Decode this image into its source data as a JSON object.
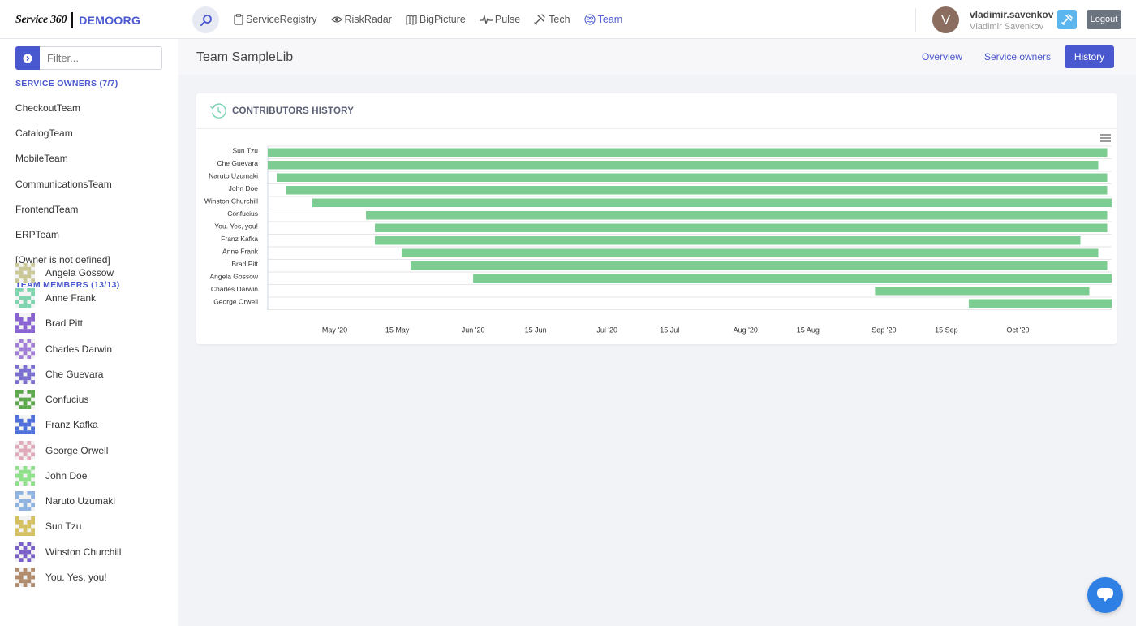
{
  "header": {
    "brand_logo": "Service 360",
    "org": "DEMOORG",
    "nav": [
      {
        "label": "ServiceRegistry",
        "icon": "clipboard-icon"
      },
      {
        "label": "RiskRadar",
        "icon": "eye-icon"
      },
      {
        "label": "BigPicture",
        "icon": "map-icon"
      },
      {
        "label": "Pulse",
        "icon": "pulse-icon"
      },
      {
        "label": "Tech",
        "icon": "tools-icon"
      },
      {
        "label": "Team",
        "icon": "team-icon",
        "active": true
      }
    ],
    "avatar_initial": "V",
    "user_login": "vladimir.savenkov",
    "user_name": "Vladimir Savenkov",
    "logout_label": "Logout"
  },
  "sidebar": {
    "filter_placeholder": "Filter...",
    "owners_heading": "SERVICE OWNERS (7/7)",
    "owners": [
      "CheckoutTeam",
      "CatalogTeam",
      "MobileTeam",
      "CommunicationsTeam",
      "FrontendTeam",
      "ERPTeam",
      "[Owner is not defined]"
    ],
    "members_heading": "TEAM MEMBERS (13/13)",
    "members": [
      {
        "name": "Angela Gossow",
        "color": "#c9c796"
      },
      {
        "name": "Anne Frank",
        "color": "#7fd4b0"
      },
      {
        "name": "Brad Pitt",
        "color": "#8a63d2"
      },
      {
        "name": "Charles Darwin",
        "color": "#a27fd6"
      },
      {
        "name": "Che Guevara",
        "color": "#7a6fd0"
      },
      {
        "name": "Confucius",
        "color": "#5aa84a"
      },
      {
        "name": "Franz Kafka",
        "color": "#4e6fd9"
      },
      {
        "name": "George Orwell",
        "color": "#e0a8b8"
      },
      {
        "name": "John Doe",
        "color": "#8fe08a"
      },
      {
        "name": "Naruto Uzumaki",
        "color": "#8fb3e0"
      },
      {
        "name": "Sun Tzu",
        "color": "#d4c060"
      },
      {
        "name": "Winston Churchill",
        "color": "#7a5fc8"
      },
      {
        "name": "You. Yes, you!",
        "color": "#b08a6a"
      }
    ]
  },
  "main": {
    "page_title": "Team SampleLib",
    "tabs": [
      {
        "label": "Overview"
      },
      {
        "label": "Service owners"
      },
      {
        "label": "History",
        "active": true
      }
    ],
    "card_title": "CONTRIBUTORS HISTORY"
  },
  "colors": {
    "accent": "#4a58cf",
    "bar": "#7dcc91"
  },
  "chart_data": {
    "type": "bar",
    "orientation": "horizontal-range",
    "categories": [
      "Sun Tzu",
      "Che Guevara",
      "Naruto Uzumaki",
      "John Doe",
      "Winston Churchill",
      "Confucius",
      "You. Yes, you!",
      "Franz Kafka",
      "Anne Frank",
      "Brad Pitt",
      "Angela Gossow",
      "Charles Darwin",
      "George Orwell"
    ],
    "series": [
      {
        "start": [
          "2020-04-16",
          "2020-04-16",
          "2020-04-18",
          "2020-04-20",
          "2020-04-26",
          "2020-05-08",
          "2020-05-10",
          "2020-05-10",
          "2020-05-16",
          "2020-05-18",
          "2020-06-01",
          "2020-08-30",
          "2020-09-20"
        ],
        "end": [
          "2020-10-21",
          "2020-10-19",
          "2020-10-21",
          "2020-10-21",
          "2020-10-22",
          "2020-10-21",
          "2020-10-21",
          "2020-10-15",
          "2020-10-19",
          "2020-10-21",
          "2020-10-22",
          "2020-10-17",
          "2020-10-22"
        ]
      }
    ],
    "x_ticks": [
      "May '20",
      "15 May",
      "Jun '20",
      "15 Jun",
      "Jul '20",
      "15 Jul",
      "Aug '20",
      "15 Aug",
      "Sep '20",
      "15 Sep",
      "Oct '20"
    ],
    "x_tick_dates": [
      "2020-05-01",
      "2020-05-15",
      "2020-06-01",
      "2020-06-15",
      "2020-07-01",
      "2020-07-15",
      "2020-08-01",
      "2020-08-15",
      "2020-09-01",
      "2020-09-15",
      "2020-10-01"
    ],
    "xlim": [
      "2020-04-16",
      "2020-10-22"
    ],
    "grid": true,
    "legend": false
  }
}
